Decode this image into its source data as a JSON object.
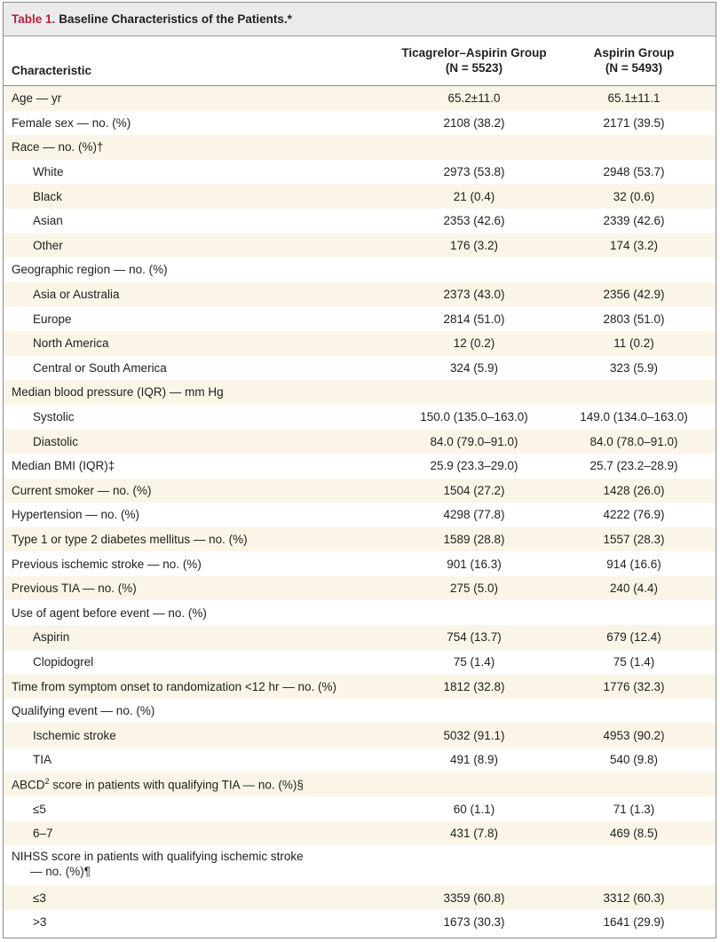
{
  "title": {
    "number": "Table 1.",
    "text": "Baseline Characteristics of the Patients.*"
  },
  "columns": {
    "characteristic": "Characteristic",
    "group1_line1": "Ticagrelor–Aspirin Group",
    "group1_line2": "(N = 5523)",
    "group2_line1": "Aspirin Group",
    "group2_line2": "(N = 5493)"
  },
  "rows": [
    {
      "label": "Age — yr",
      "v1": "65.2±11.0",
      "v2": "65.1±11.1"
    },
    {
      "label": "Female sex — no. (%)",
      "v1": "2108 (38.2)",
      "v2": "2171 (39.5)"
    },
    {
      "label": "Race — no. (%)†",
      "v1": "",
      "v2": ""
    },
    {
      "label": "White",
      "v1": "2973 (53.8)",
      "v2": "2948 (53.7)"
    },
    {
      "label": "Black",
      "v1": "21 (0.4)",
      "v2": "32 (0.6)"
    },
    {
      "label": "Asian",
      "v1": "2353 (42.6)",
      "v2": "2339 (42.6)"
    },
    {
      "label": "Other",
      "v1": "176 (3.2)",
      "v2": "174 (3.2)"
    },
    {
      "label": "Geographic region — no. (%)",
      "v1": "",
      "v2": ""
    },
    {
      "label": "Asia or Australia",
      "v1": "2373 (43.0)",
      "v2": "2356 (42.9)"
    },
    {
      "label": "Europe",
      "v1": "2814 (51.0)",
      "v2": "2803 (51.0)"
    },
    {
      "label": "North America",
      "v1": "12 (0.2)",
      "v2": "11 (0.2)"
    },
    {
      "label": "Central or South America",
      "v1": "324 (5.9)",
      "v2": "323 (5.9)"
    },
    {
      "label": "Median blood pressure (IQR) — mm Hg",
      "v1": "",
      "v2": ""
    },
    {
      "label": "Systolic",
      "v1": "150.0 (135.0–163.0)",
      "v2": "149.0 (134.0–163.0)"
    },
    {
      "label": "Diastolic",
      "v1": "84.0 (79.0–91.0)",
      "v2": "84.0 (78.0–91.0)"
    },
    {
      "label": "Median BMI (IQR)‡",
      "v1": "25.9 (23.3–29.0)",
      "v2": "25.7 (23.2–28.9)"
    },
    {
      "label": "Current smoker — no. (%)",
      "v1": "1504 (27.2)",
      "v2": "1428 (26.0)"
    },
    {
      "label": "Hypertension — no. (%)",
      "v1": "4298 (77.8)",
      "v2": "4222 (76.9)"
    },
    {
      "label": "Type 1 or type 2 diabetes mellitus — no. (%)",
      "v1": "1589 (28.8)",
      "v2": "1557 (28.3)"
    },
    {
      "label": "Previous ischemic stroke — no. (%)",
      "v1": "901 (16.3)",
      "v2": "914 (16.6)"
    },
    {
      "label": "Previous TIA — no. (%)",
      "v1": "275 (5.0)",
      "v2": "240 (4.4)"
    },
    {
      "label": "Use of agent before event — no. (%)",
      "v1": "",
      "v2": ""
    },
    {
      "label": "Aspirin",
      "v1": "754 (13.7)",
      "v2": "679 (12.4)"
    },
    {
      "label": "Clopidogrel",
      "v1": "75 (1.4)",
      "v2": "75 (1.4)"
    },
    {
      "label": "Time from symptom onset to randomization <12 hr — no. (%)",
      "v1": "1812 (32.8)",
      "v2": "1776 (32.3)"
    },
    {
      "label": "Qualifying event — no. (%)",
      "v1": "",
      "v2": ""
    },
    {
      "label": "Ischemic stroke",
      "v1": "5032 (91.1)",
      "v2": "4953 (90.2)"
    },
    {
      "label": "TIA",
      "v1": "491 (8.9)",
      "v2": "540 (9.8)"
    },
    {
      "label_pre": "ABCD",
      "label_sup": "2",
      "label_post": " score in patients with qualifying TIA — no. (%)§",
      "v1": "",
      "v2": ""
    },
    {
      "label": "≤5",
      "v1": "60 (1.1)",
      "v2": "71 (1.3)"
    },
    {
      "label": "6–7",
      "v1": "431 (7.8)",
      "v2": "469 (8.5)"
    },
    {
      "label_line1": "NIHSS score in patients with qualifying ischemic stroke",
      "label_line2": "— no. (%)¶",
      "v1": "",
      "v2": ""
    },
    {
      "label": "≤3",
      "v1": "3359 (60.8)",
      "v2": "3312 (60.3)"
    },
    {
      "label": ">3",
      "v1": "1673 (30.3)",
      "v2": "1641 (29.9)"
    }
  ]
}
